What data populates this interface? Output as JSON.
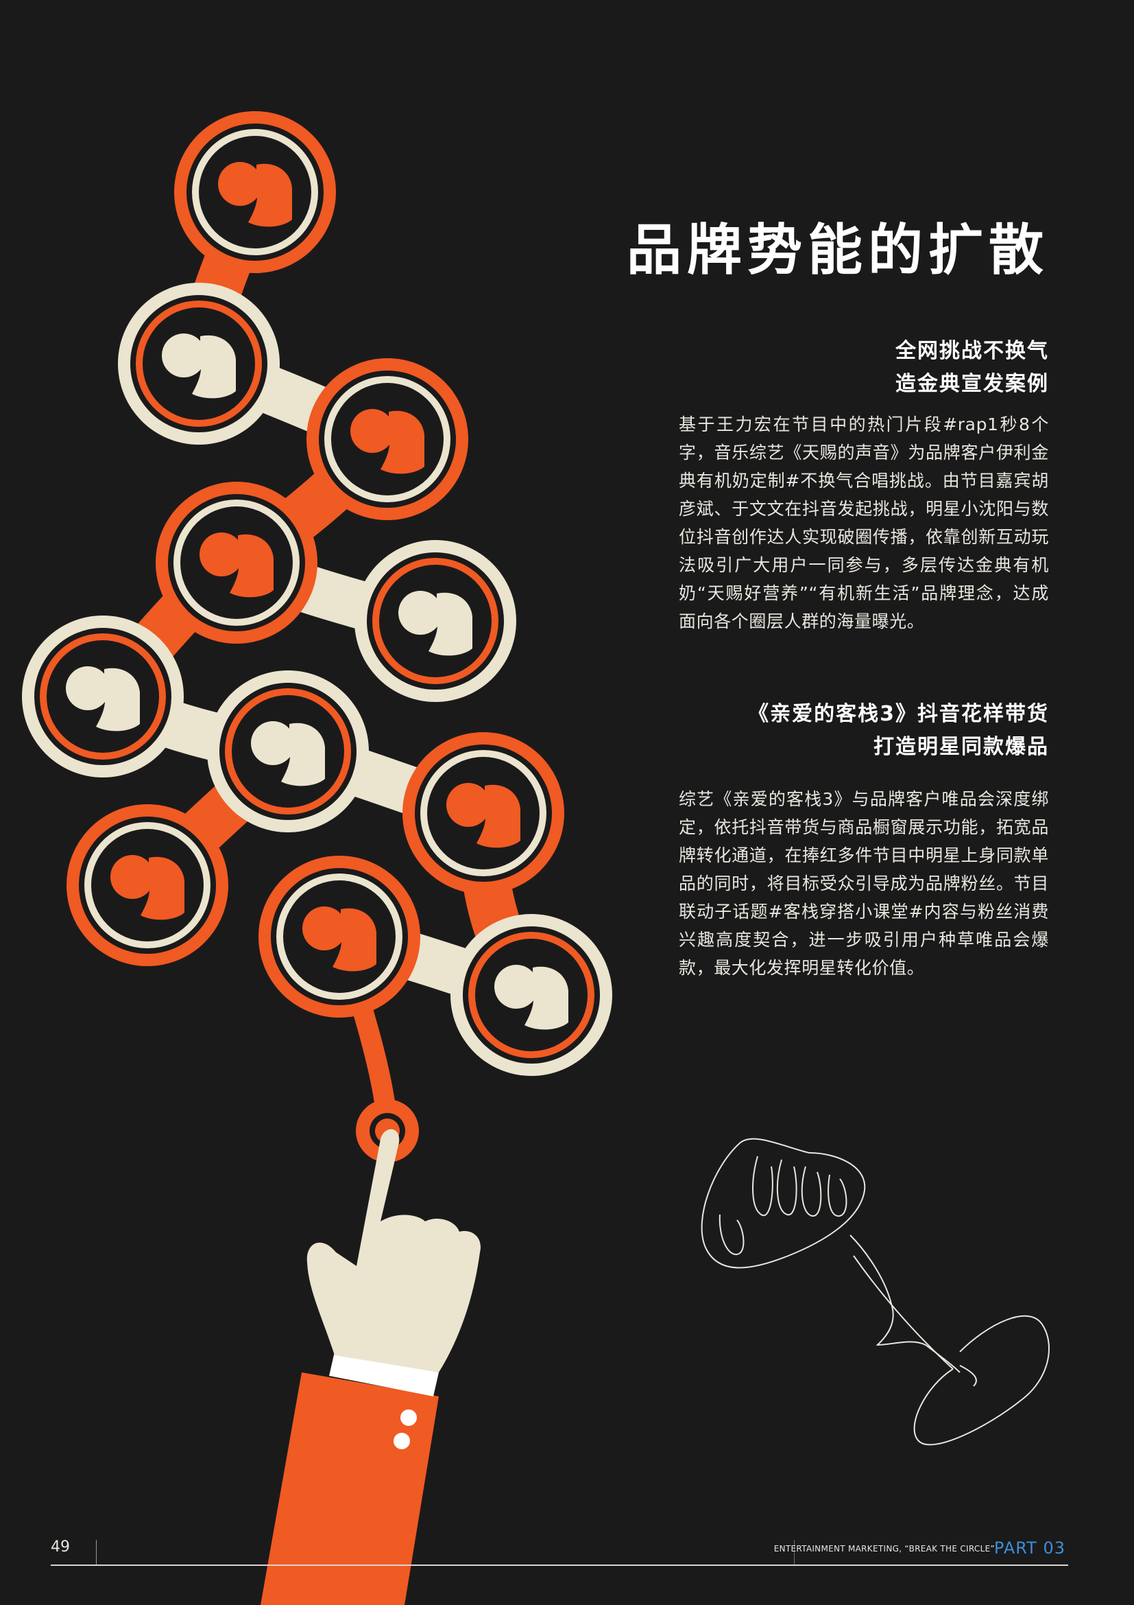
{
  "page_title": "品牌势能的扩散",
  "section1": {
    "heading_line1": "全网挑战不换气",
    "heading_line2": "造金典宣发案例",
    "body": "基于王力宏在节目中的热门片段#rap1秒8个字，音乐综艺《天赐的声音》为品牌客户伊利金典有机奶定制#不换气合唱挑战。由节目嘉宾胡彦斌、于文文在抖音发起挑战，明星小沈阳与数位抖音创作达人实现破圈传播，依靠创新互动玩法吸引广大用户一同参与，多层传达金典有机奶“天赐好营养”“有机新生活”品牌理念，达成面向各个圈层人群的海量曝光。"
  },
  "section2": {
    "heading_line1": "《亲爱的客栈3》抖音花样带货",
    "heading_line2": "打造明星同款爆品",
    "body": "综艺《亲爱的客栈3》与品牌客户唯品会深度绑定，依托抖音带货与商品橱窗展示功能，拓宽品牌转化通道，在捧红多件节目中明星上身同款单品的同时，将目标受众引导成为品牌粉丝。节目联动子话题#客栈穿搭小课堂#内容与粉丝消费兴趣高度契合，进一步吸引用户种草唯品会爆款，最大化发挥明星转化价值。"
  },
  "footer": {
    "page_number": "49",
    "tagline": "ENTERTAINMENT MARKETING, “BREAK THE CIRCLE”",
    "part": "PART 03"
  },
  "colors": {
    "background": "#1b1a1b",
    "orange": "#f05a23",
    "cream": "#ebe4cf",
    "accent_blue": "#3b8fd6"
  }
}
